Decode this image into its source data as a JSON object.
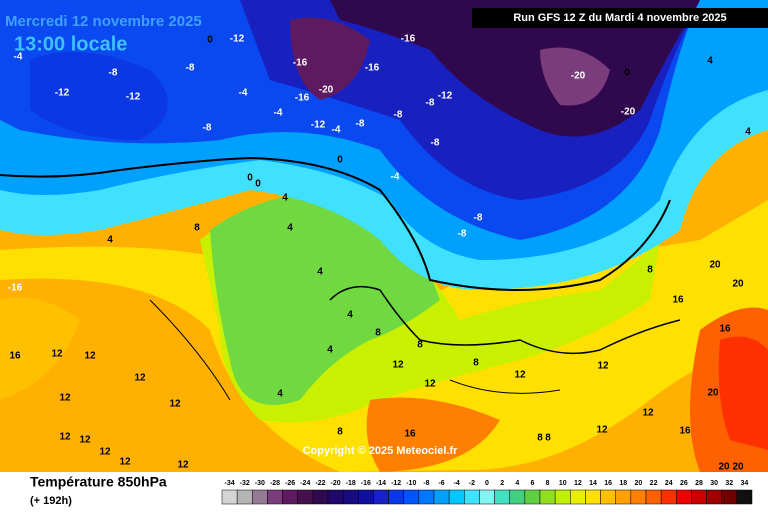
{
  "header": {
    "date": "Mercredi 12 novembre 2025",
    "time": "13:00 locale",
    "run": "Run GFS 12 Z du Mardi 4 novembre 2025",
    "copyright": "Copyright © 2025 Meteociel.fr"
  },
  "footer": {
    "title": "Température 850hPa",
    "lead": "(+ 192h)"
  },
  "legend": {
    "values": [
      -34,
      -32,
      -30,
      -28,
      -26,
      -24,
      -22,
      -20,
      -18,
      -16,
      -14,
      -12,
      -10,
      -8,
      -6,
      -4,
      -2,
      0,
      2,
      4,
      6,
      8,
      10,
      12,
      14,
      16,
      18,
      20,
      22,
      24,
      26,
      28,
      30,
      32,
      34
    ],
    "colors": [
      "#d4d4d4",
      "#b4b4b4",
      "#957a95",
      "#7a3c7a",
      "#5e1a60",
      "#46104e",
      "#30084e",
      "#20086a",
      "#180a80",
      "#1010a0",
      "#1820c8",
      "#0a38e4",
      "#0055ff",
      "#0078ff",
      "#00a0ff",
      "#00c8ff",
      "#40e0ff",
      "#80f4f0",
      "#40e0c0",
      "#40d080",
      "#60d040",
      "#90e020",
      "#c0f000",
      "#e8f000",
      "#ffe000",
      "#ffc000",
      "#ffa000",
      "#ff8000",
      "#ff6000",
      "#ff3000",
      "#ee0000",
      "#c80000",
      "#a00000",
      "#700000",
      "#101010"
    ]
  },
  "map": {
    "labels": [
      -4,
      -12,
      -12,
      -8,
      -8,
      -12,
      0,
      -4,
      -8,
      -4,
      -16,
      -16,
      -20,
      -12,
      -4,
      -8,
      -16,
      -16,
      -8,
      -8,
      -12,
      -8,
      -8,
      -8,
      -20,
      0,
      -20,
      -4,
      4,
      4,
      0,
      0,
      0,
      -4,
      8,
      4,
      -16,
      16,
      12,
      12,
      12,
      12,
      12,
      12,
      12,
      12,
      12,
      12,
      4,
      4,
      4,
      4,
      4,
      4,
      8,
      8,
      12,
      12,
      16,
      8,
      8,
      8,
      12,
      12,
      12,
      16,
      16,
      20,
      20,
      16,
      20,
      20,
      20,
      8,
      12,
      8
    ]
  }
}
